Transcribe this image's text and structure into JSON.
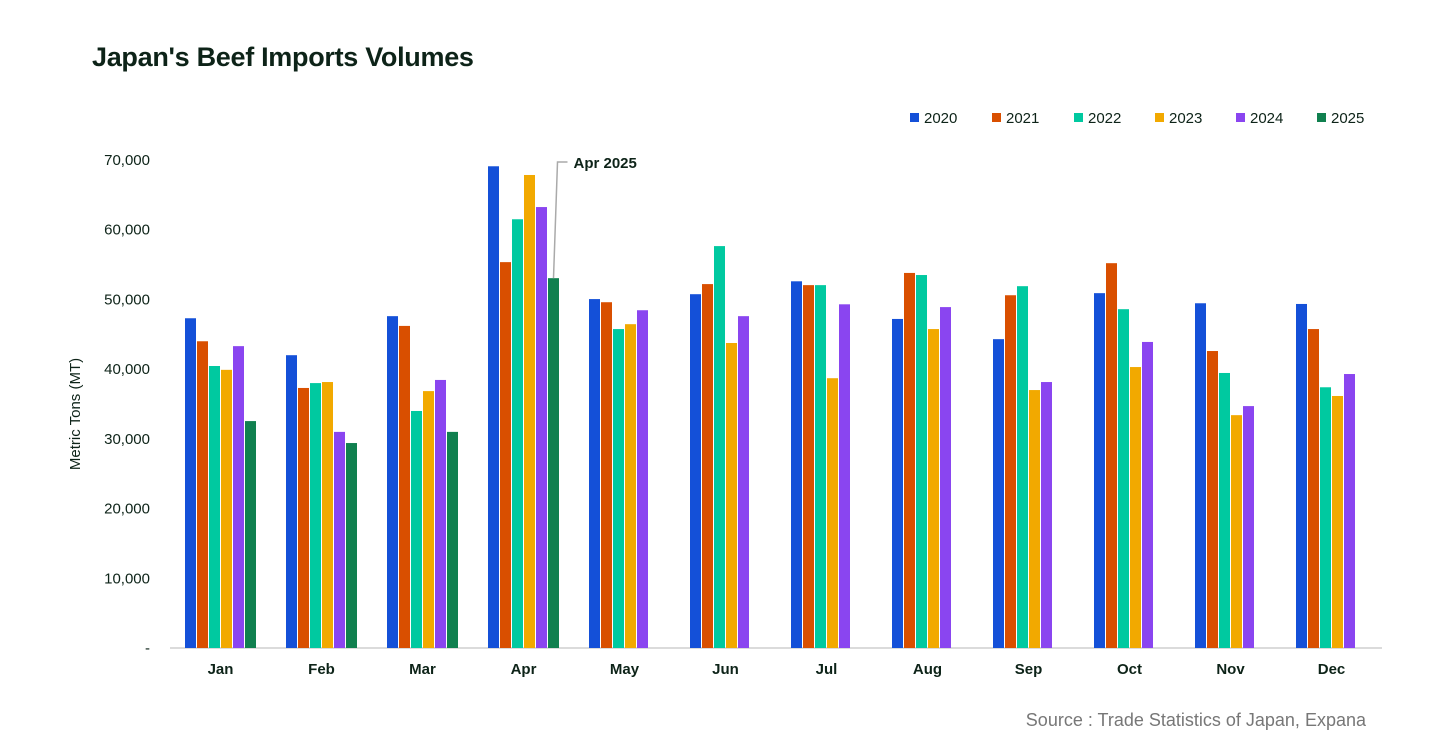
{
  "chart_data": {
    "type": "bar",
    "title": "Japan's Beef Imports Volumes",
    "ylabel": "Metric Tons (MT)",
    "xlabel": "",
    "ylim": [
      0,
      70000
    ],
    "yticks": [
      0,
      10000,
      20000,
      30000,
      40000,
      50000,
      60000,
      70000
    ],
    "ytick_labels": [
      "-",
      "10,000",
      "20,000",
      "30,000",
      "40,000",
      "50,000",
      "60,000",
      "70,000"
    ],
    "grid": false,
    "legend_position": "top-right",
    "categories": [
      "Jan",
      "Feb",
      "Mar",
      "Apr",
      "May",
      "Jun",
      "Jul",
      "Aug",
      "Sep",
      "Oct",
      "Nov",
      "Dec"
    ],
    "series": [
      {
        "name": "2020",
        "color": "#1450d8",
        "values": [
          47300,
          42000,
          47600,
          69100,
          50050,
          50750,
          52600,
          47200,
          44300,
          50900,
          49450,
          49350
        ]
      },
      {
        "name": "2021",
        "color": "#d94f00",
        "values": [
          44000,
          37300,
          46200,
          55350,
          49600,
          52200,
          52050,
          53800,
          50600,
          55200,
          42600,
          45750
        ]
      },
      {
        "name": "2022",
        "color": "#00c9a0",
        "values": [
          40450,
          38000,
          34000,
          61500,
          45750,
          57650,
          52050,
          53500,
          51900,
          48600,
          39450,
          37400
        ]
      },
      {
        "name": "2023",
        "color": "#f2a900",
        "values": [
          39900,
          38150,
          36850,
          67850,
          46450,
          43750,
          38700,
          45750,
          37000,
          40300,
          33400,
          36150
        ]
      },
      {
        "name": "2024",
        "color": "#8a45f0",
        "values": [
          43300,
          31000,
          38450,
          63250,
          48450,
          47600,
          49300,
          48900,
          38150,
          43900,
          34700,
          39300
        ]
      },
      {
        "name": "2025",
        "color": "#10804f",
        "values": [
          32550,
          29400,
          31000,
          53050,
          null,
          null,
          null,
          null,
          null,
          null,
          null,
          null
        ]
      }
    ],
    "annotation": {
      "text": "Apr 2025",
      "category": "Apr",
      "series": "2025"
    },
    "source": "Source : Trade Statistics of Japan, Expana"
  }
}
